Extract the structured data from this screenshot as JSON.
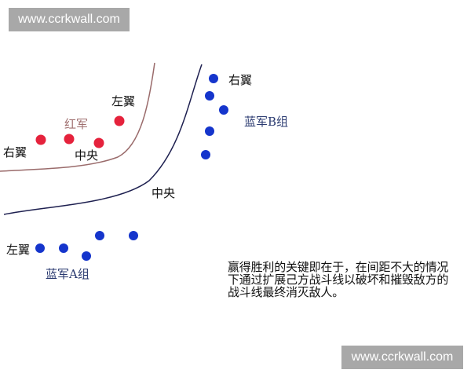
{
  "watermark": "www.ccrkwall.com",
  "colors": {
    "red_army": "#e5223c",
    "blue_army": "#1535cc",
    "red_line": "#9a6b6b",
    "blue_line": "#1e2050",
    "red_label": "#a07070",
    "blue_label": "#2a3a70"
  },
  "red_army": {
    "label": "红军",
    "left_wing": "左翼",
    "center": "中央",
    "right_wing": "右翼"
  },
  "blue_b": {
    "label": "蓝军B组",
    "right_wing": "右翼"
  },
  "blue_center": "中央",
  "blue_a": {
    "label": "蓝军A组",
    "left_wing": "左翼"
  },
  "caption": [
    "赢得胜利的关键即在于，在间距不大的情况",
    "下通过扩展己方战斗线以破坏和摧毁敌方的",
    "战斗线最终消灭敌人。"
  ]
}
